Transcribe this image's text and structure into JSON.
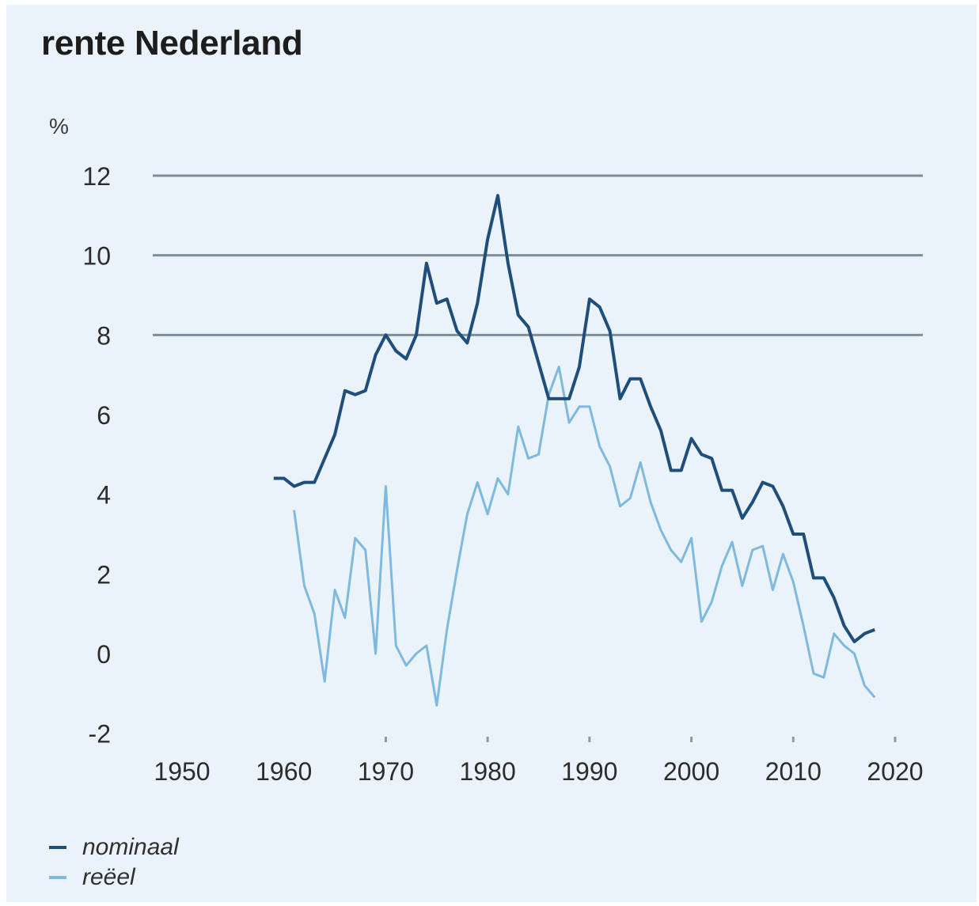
{
  "chart_data": {
    "type": "line",
    "title": "rente Nederland",
    "ylabel": "%",
    "xlabel": "",
    "ylim": [
      -2,
      12
    ],
    "xlim": [
      1948,
      2022
    ],
    "yticks": [
      12,
      10,
      8,
      6,
      4,
      2,
      0,
      -2
    ],
    "xticks": [
      1950,
      1960,
      1970,
      1980,
      1990,
      2000,
      2010,
      2020
    ],
    "gridlines_y": [
      8,
      10,
      12
    ],
    "legend_position": "bottom-left",
    "series": [
      {
        "name": "nominaal",
        "color": "#1f4e7a",
        "x": [
          1959,
          1960,
          1961,
          1962,
          1963,
          1964,
          1965,
          1966,
          1967,
          1968,
          1969,
          1970,
          1971,
          1972,
          1973,
          1974,
          1975,
          1976,
          1977,
          1978,
          1979,
          1980,
          1981,
          1982,
          1983,
          1984,
          1985,
          1986,
          1987,
          1988,
          1989,
          1990,
          1991,
          1992,
          1993,
          1994,
          1995,
          1996,
          1997,
          1998,
          1999,
          2000,
          2001,
          2002,
          2003,
          2004,
          2005,
          2006,
          2007,
          2008,
          2009,
          2010,
          2011,
          2012,
          2013,
          2014,
          2015,
          2016,
          2017,
          2018
        ],
        "y": [
          4.4,
          4.4,
          4.2,
          4.3,
          4.3,
          4.9,
          5.5,
          6.6,
          6.5,
          6.6,
          7.5,
          8.0,
          7.6,
          7.4,
          8.0,
          9.8,
          8.8,
          8.9,
          8.1,
          7.8,
          8.8,
          10.4,
          11.5,
          9.8,
          8.5,
          8.2,
          7.3,
          6.4,
          6.4,
          6.4,
          7.2,
          8.9,
          8.7,
          8.1,
          6.4,
          6.9,
          6.9,
          6.2,
          5.6,
          4.6,
          4.6,
          5.4,
          5.0,
          4.9,
          4.1,
          4.1,
          3.4,
          3.8,
          4.3,
          4.2,
          3.7,
          3.0,
          3.0,
          1.9,
          1.9,
          1.4,
          0.7,
          0.3,
          0.5,
          0.6
        ]
      },
      {
        "name": "reëel",
        "color": "#7fb9dd",
        "x": [
          1961,
          1962,
          1963,
          1964,
          1965,
          1966,
          1967,
          1968,
          1969,
          1970,
          1971,
          1972,
          1973,
          1974,
          1975,
          1976,
          1977,
          1978,
          1979,
          1980,
          1981,
          1982,
          1983,
          1984,
          1985,
          1986,
          1987,
          1988,
          1989,
          1990,
          1991,
          1992,
          1993,
          1994,
          1995,
          1996,
          1997,
          1998,
          1999,
          2000,
          2001,
          2002,
          2003,
          2004,
          2005,
          2006,
          2007,
          2008,
          2009,
          2010,
          2011,
          2012,
          2013,
          2014,
          2015,
          2016,
          2017,
          2018
        ],
        "y": [
          3.6,
          1.7,
          1.0,
          -0.7,
          1.6,
          0.9,
          2.9,
          2.6,
          0.0,
          4.2,
          0.2,
          -0.3,
          0.0,
          0.2,
          -1.3,
          0.6,
          2.1,
          3.5,
          4.3,
          3.5,
          4.4,
          4.0,
          5.7,
          4.9,
          5.0,
          6.5,
          7.2,
          5.8,
          6.2,
          6.2,
          5.2,
          4.7,
          3.7,
          3.9,
          4.8,
          3.8,
          3.1,
          2.6,
          2.3,
          2.9,
          0.8,
          1.3,
          2.2,
          2.8,
          1.7,
          2.6,
          2.7,
          1.6,
          2.5,
          1.8,
          0.7,
          -0.5,
          -0.6,
          0.5,
          0.2,
          0.0,
          -0.8,
          -1.1
        ]
      }
    ]
  }
}
